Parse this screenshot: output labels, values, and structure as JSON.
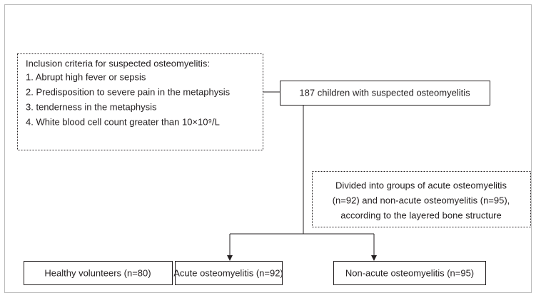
{
  "criteria_box": {
    "title": "Inclusion criteria for suspected osteomyelitis:",
    "items": [
      "1. Abrupt high fever or sepsis",
      "2. Predisposition to severe pain in the metaphysis",
      "3. tenderness in the metaphysis",
      "4. White blood cell count greater than 10×10⁹/L"
    ]
  },
  "main_box": {
    "label": "187 children with suspected osteomyelitis"
  },
  "note_box": {
    "lines": [
      "Divided into groups of acute osteomyelitis",
      "(n=92) and non-acute osteomyelitis (n=95),",
      "according to the layered bone structure"
    ]
  },
  "groups": [
    {
      "label": "Healthy volunteers (n=80)"
    },
    {
      "label": "Acute osteomyelitis (n=92)"
    },
    {
      "label": "Non-acute osteomyelitis (n=95)"
    }
  ]
}
